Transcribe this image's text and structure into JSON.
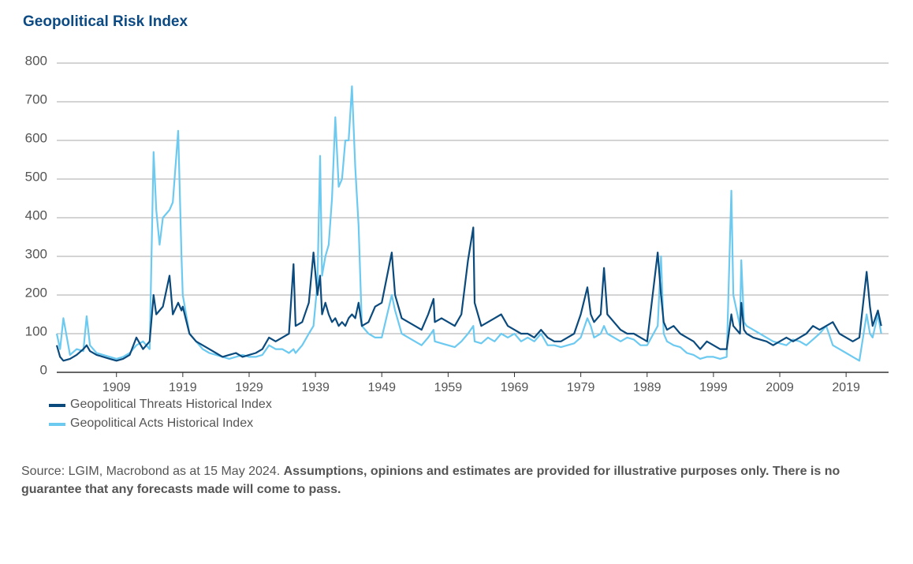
{
  "chart_data": {
    "type": "line",
    "title": "Geopolitical Risk Index",
    "source": "Source: LGIM, Macrobond as at 15 May 2024.",
    "disclaimer": "Assumptions, opinions and estimates are provided for illustrative purposes only. There is no guarantee that any forecasts made will come to pass.",
    "x": [
      1900,
      1900.5,
      1901,
      1902,
      1903,
      1904,
      1904.5,
      1905,
      1906,
      1907,
      1908,
      1909,
      1910,
      1911,
      1912,
      1913,
      1914,
      1914.6,
      1915,
      1915.5,
      1916,
      1917,
      1917.5,
      1918.3,
      1918.8,
      1919,
      1920,
      1921,
      1922,
      1923,
      1924,
      1925,
      1926,
      1927,
      1928,
      1929,
      1930,
      1931,
      1932,
      1933,
      1934,
      1935,
      1935.7,
      1936,
      1937,
      1938,
      1938.7,
      1939.3,
      1939.7,
      1940,
      1940.5,
      1941,
      1941.5,
      1942,
      1942.5,
      1943,
      1943.5,
      1944,
      1944.5,
      1945,
      1945.5,
      1946,
      1947,
      1948,
      1949,
      1950.5,
      1951,
      1952,
      1953,
      1954,
      1955,
      1956,
      1956.8,
      1957,
      1958,
      1959,
      1960,
      1961,
      1962,
      1962.8,
      1963,
      1964,
      1965,
      1966,
      1967,
      1968,
      1969,
      1970,
      1971,
      1972,
      1973,
      1974,
      1975,
      1976,
      1977,
      1978,
      1979,
      1980,
      1980.5,
      1981,
      1982,
      1982.5,
      1983,
      1984,
      1985,
      1986,
      1987,
      1988,
      1989,
      1990.6,
      1991.1,
      1991.5,
      1992,
      1993,
      1994,
      1995,
      1996,
      1997,
      1998,
      1999,
      2000,
      2001,
      2001.7,
      2002,
      2003,
      2003.2,
      2003.6,
      2004,
      2005,
      2006,
      2007,
      2008,
      2009,
      2010,
      2011,
      2012,
      2013,
      2014,
      2015,
      2016,
      2017,
      2018,
      2019,
      2020,
      2021,
      2022.1,
      2022.6,
      2023,
      2023.8,
      2024.3
    ],
    "series": [
      {
        "name": "Geopolitical Threats Historical Index",
        "color": "#0b4a7d",
        "values": [
          70,
          40,
          30,
          35,
          45,
          60,
          70,
          55,
          45,
          40,
          35,
          30,
          35,
          45,
          90,
          60,
          80,
          200,
          150,
          160,
          170,
          250,
          150,
          180,
          160,
          170,
          100,
          80,
          70,
          60,
          50,
          40,
          45,
          50,
          40,
          45,
          50,
          60,
          90,
          80,
          90,
          100,
          280,
          120,
          130,
          180,
          310,
          200,
          250,
          150,
          180,
          150,
          130,
          140,
          120,
          130,
          120,
          140,
          150,
          140,
          180,
          120,
          130,
          170,
          180,
          310,
          200,
          140,
          130,
          120,
          110,
          150,
          190,
          130,
          140,
          130,
          120,
          150,
          290,
          375,
          180,
          120,
          130,
          140,
          150,
          120,
          110,
          100,
          100,
          90,
          110,
          90,
          80,
          80,
          90,
          100,
          150,
          220,
          150,
          130,
          150,
          270,
          150,
          130,
          110,
          100,
          100,
          90,
          80,
          310,
          200,
          130,
          110,
          120,
          100,
          90,
          80,
          60,
          80,
          70,
          60,
          60,
          150,
          120,
          100,
          180,
          110,
          100,
          90,
          85,
          80,
          70,
          80,
          90,
          80,
          90,
          100,
          120,
          110,
          120,
          130,
          100,
          90,
          80,
          90,
          260,
          170,
          120,
          160,
          120
        ]
      },
      {
        "name": "Geopolitical Acts Historical Index",
        "color": "#6ccaf1",
        "values": [
          100,
          60,
          140,
          45,
          60,
          55,
          145,
          70,
          50,
          45,
          40,
          35,
          40,
          50,
          70,
          80,
          60,
          570,
          420,
          330,
          400,
          420,
          440,
          625,
          300,
          200,
          100,
          80,
          60,
          50,
          45,
          40,
          35,
          40,
          45,
          40,
          40,
          45,
          70,
          60,
          60,
          50,
          60,
          50,
          70,
          100,
          120,
          230,
          560,
          250,
          300,
          330,
          450,
          660,
          480,
          500,
          600,
          600,
          740,
          530,
          380,
          120,
          100,
          90,
          90,
          200,
          160,
          100,
          90,
          80,
          70,
          90,
          110,
          80,
          75,
          70,
          65,
          80,
          100,
          120,
          80,
          75,
          90,
          80,
          100,
          90,
          100,
          80,
          90,
          80,
          100,
          70,
          70,
          65,
          70,
          75,
          90,
          140,
          120,
          90,
          100,
          120,
          100,
          90,
          80,
          90,
          85,
          70,
          70,
          120,
          300,
          100,
          80,
          70,
          65,
          50,
          45,
          35,
          40,
          40,
          35,
          40,
          470,
          200,
          120,
          290,
          130,
          120,
          110,
          100,
          90,
          80,
          75,
          70,
          85,
          80,
          70,
          85,
          100,
          120,
          70,
          60,
          50,
          40,
          30,
          150,
          100,
          90,
          150,
          100
        ]
      }
    ],
    "xlim": [
      1900,
      2025.4
    ],
    "xticks": [
      1909,
      1919,
      1929,
      1939,
      1949,
      1959,
      1969,
      1979,
      1989,
      1999,
      2009,
      2019
    ],
    "ylim": [
      0,
      800
    ],
    "yticks": [
      0,
      100,
      200,
      300,
      400,
      500,
      600,
      700,
      800
    ],
    "grid": true
  }
}
